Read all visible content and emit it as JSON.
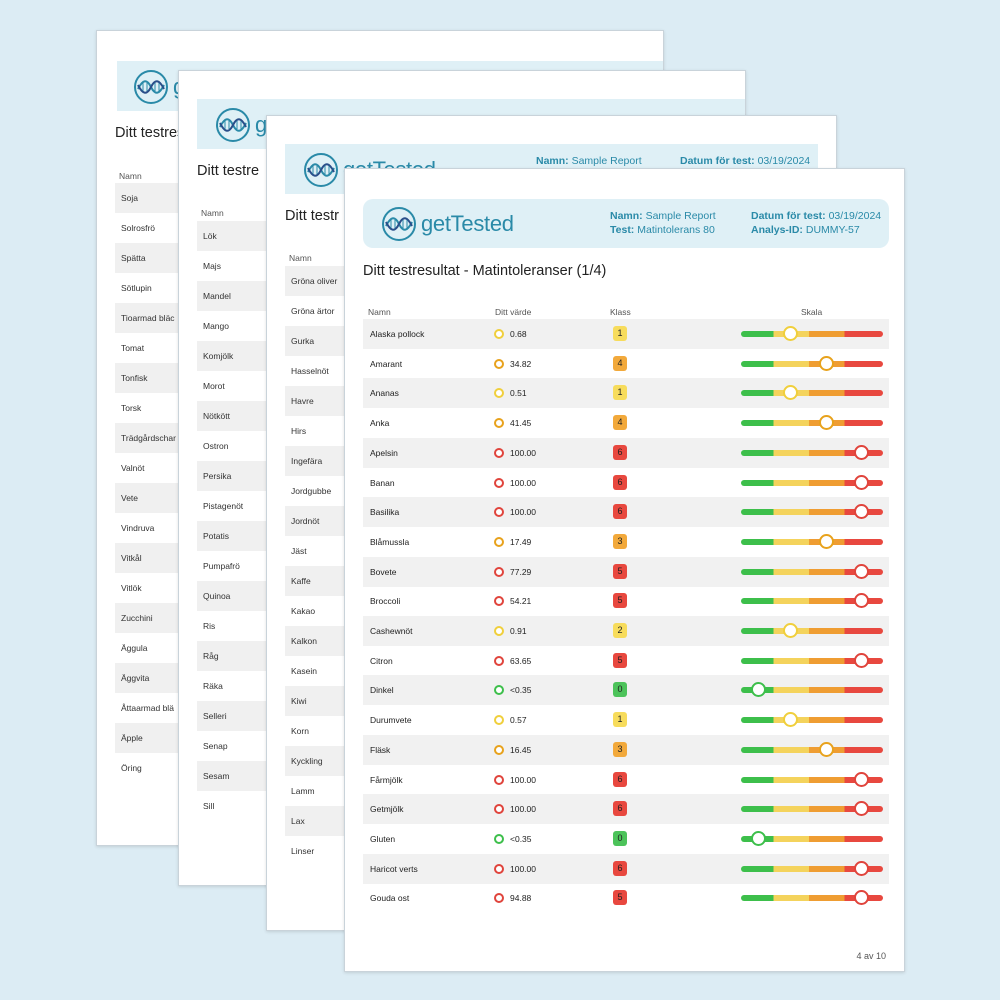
{
  "brand": {
    "name": "getTested"
  },
  "labels": {
    "name": "Namn:",
    "test": "Test:",
    "date": "Datum för test:",
    "analysis": "Analys-ID:"
  },
  "report": {
    "name": "Sample Report",
    "test": "Matintolerans 80",
    "date": "03/19/2024",
    "analysis_id": "DUMMY-57",
    "title": "Ditt testresultat - Matintoleranser (1/4)",
    "title_partial": "Ditt testres",
    "title_partial_2": "Ditt testre",
    "title_partial_3": "Ditt testr"
  },
  "columns": {
    "name": "Namn",
    "value": "Ditt värde",
    "class": "Klass",
    "scale": "Skala"
  },
  "page1_rows": [
    "Soja",
    "Solrosfrö",
    "Spätta",
    "Sötlupin",
    "Tioarmad bläc",
    "Tomat",
    "Tonfisk",
    "Torsk",
    "Trädgårdschar",
    "Valnöt",
    "Vete",
    "Vindruva",
    "Vitkål",
    "Vitlök",
    "Zucchini",
    "Äggula",
    "Äggvita",
    "Åttaarmad blä",
    "Äpple",
    "Öring"
  ],
  "page2_rows": [
    "Lök",
    "Majs",
    "Mandel",
    "Mango",
    "Komjölk",
    "Morot",
    "Nötkött",
    "Ostron",
    "Persika",
    "Pistagenöt",
    "Potatis",
    "Pumpafrö",
    "Quinoa",
    "Ris",
    "Råg",
    "Räka",
    "Selleri",
    "Senap",
    "Sesam",
    "Sill"
  ],
  "page3_rows": [
    "Gröna oliver",
    "Gröna ärtor",
    "Gurka",
    "Hasselnöt",
    "Havre",
    "Hirs",
    "Ingefära",
    "Jordgubbe",
    "Jordnöt",
    "Jäst",
    "Kaffe",
    "Kakao",
    "Kalkon",
    "Kasein",
    "Kiwi",
    "Korn",
    "Kyckling",
    "Lamm",
    "Lax",
    "Linser"
  ],
  "main_rows": [
    {
      "name": "Alaska pollock",
      "value": "0.68",
      "cls": "1"
    },
    {
      "name": "Amarant",
      "value": "34.82",
      "cls": "4"
    },
    {
      "name": "Ananas",
      "value": "0.51",
      "cls": "1"
    },
    {
      "name": "Anka",
      "value": "41.45",
      "cls": "4"
    },
    {
      "name": "Apelsin",
      "value": "100.00",
      "cls": "6"
    },
    {
      "name": "Banan",
      "value": "100.00",
      "cls": "6"
    },
    {
      "name": "Basilika",
      "value": "100.00",
      "cls": "6"
    },
    {
      "name": "Blåmussla",
      "value": "17.49",
      "cls": "3"
    },
    {
      "name": "Bovete",
      "value": "77.29",
      "cls": "5"
    },
    {
      "name": "Broccoli",
      "value": "54.21",
      "cls": "5"
    },
    {
      "name": "Cashewnöt",
      "value": "0.91",
      "cls": "2"
    },
    {
      "name": "Citron",
      "value": "63.65",
      "cls": "5"
    },
    {
      "name": "Dinkel",
      "value": "<0.35",
      "cls": "0"
    },
    {
      "name": "Durumvete",
      "value": "0.57",
      "cls": "1"
    },
    {
      "name": "Fläsk",
      "value": "16.45",
      "cls": "3"
    },
    {
      "name": "Fårmjölk",
      "value": "100.00",
      "cls": "6"
    },
    {
      "name": "Getmjölk",
      "value": "100.00",
      "cls": "6"
    },
    {
      "name": "Gluten",
      "value": "<0.35",
      "cls": "0"
    },
    {
      "name": "Haricot verts",
      "value": "100.00",
      "cls": "6"
    },
    {
      "name": "Gouda ost",
      "value": "94.88",
      "cls": "5"
    }
  ],
  "class_colors": {
    "0": "#4cc35a",
    "1": "#f7dc5c",
    "2": "#f7dc5c",
    "3": "#f2a93b",
    "4": "#f2a93b",
    "5": "#e8483f",
    "6": "#e8483f"
  },
  "dot_colors": {
    "0": "#3dbf4b",
    "1": "#f0cf3c",
    "2": "#f0cf3c",
    "3": "#e8a21c",
    "4": "#e8a21c",
    "5": "#e0443c",
    "6": "#e0443c"
  },
  "knob_levels": {
    "0": 0.12,
    "1": 0.35,
    "2": 0.35,
    "3": 0.6,
    "4": 0.6,
    "5": 0.85,
    "6": 0.85
  },
  "footer": {
    "page": "4 av 10"
  }
}
